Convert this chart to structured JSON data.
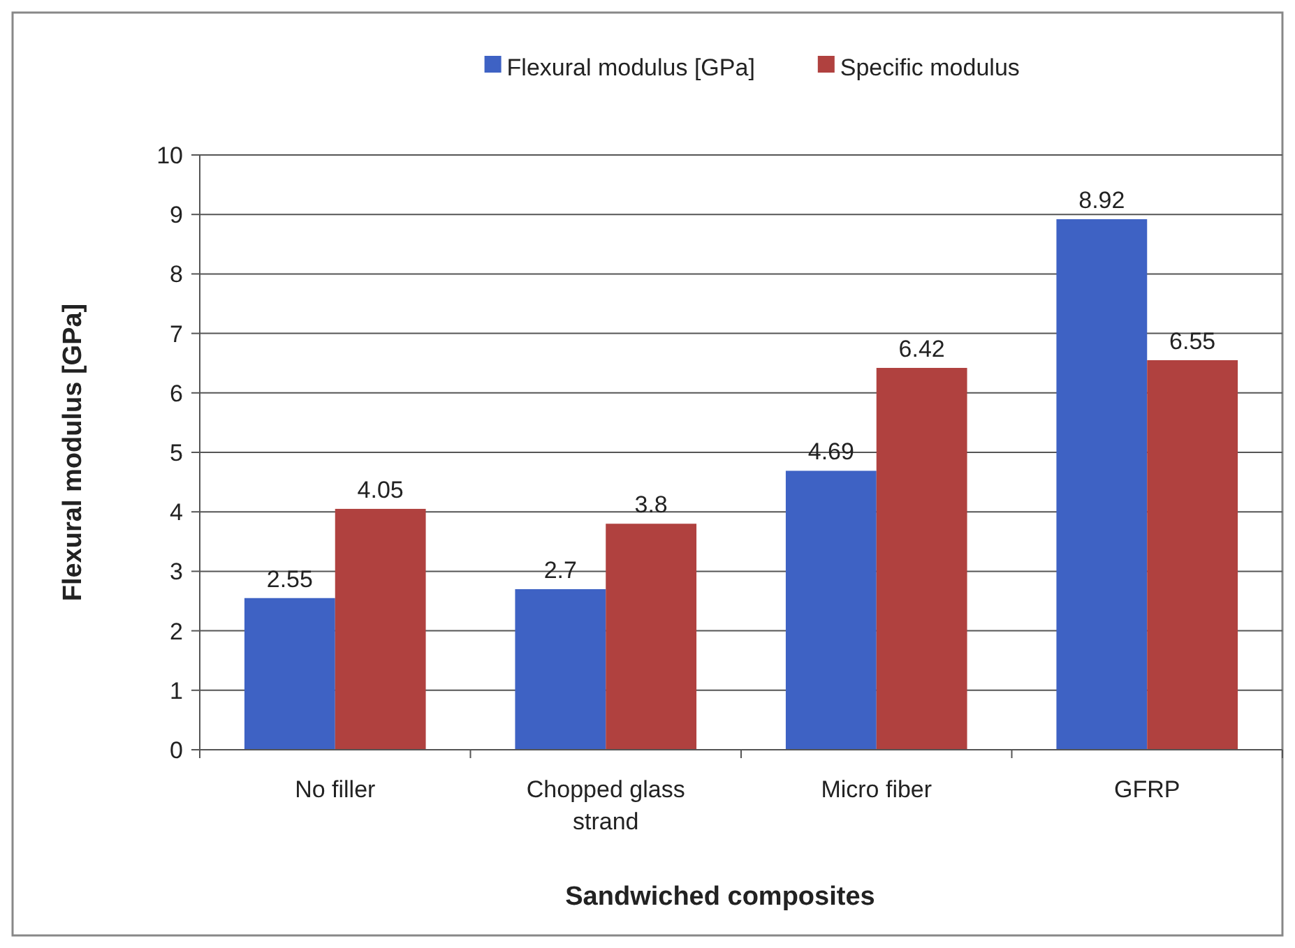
{
  "chart_data": {
    "type": "bar",
    "xlabel": "Sandwiched composites",
    "ylabel": "Flexural modulus [GPa]",
    "categories": [
      "No filler",
      "Chopped glass strand",
      "Micro fiber",
      "GFRP"
    ],
    "series": [
      {
        "name": "Flexural modulus [GPa]",
        "color": "#3e62c4",
        "values": [
          2.55,
          2.7,
          4.69,
          8.92
        ]
      },
      {
        "name": "Specific modulus",
        "color": "#b0413f",
        "values": [
          4.05,
          3.8,
          6.42,
          6.55
        ]
      }
    ],
    "ylim": [
      0,
      10
    ],
    "yticks": [
      0,
      1,
      2,
      3,
      4,
      5,
      6,
      7,
      8,
      9,
      10
    ],
    "grid": "y",
    "legend": "top",
    "data_labels": true
  }
}
